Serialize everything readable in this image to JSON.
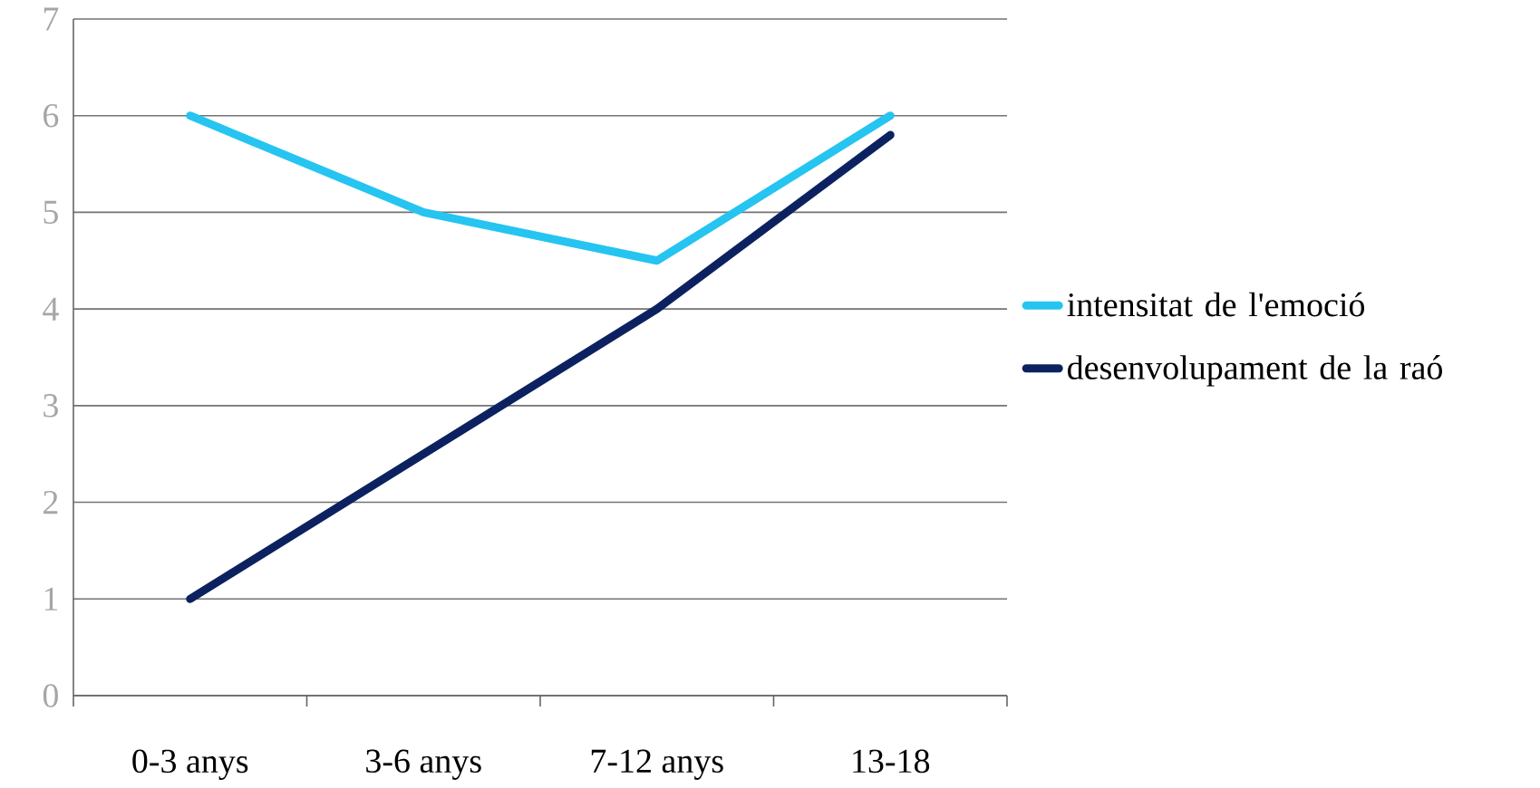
{
  "chart_data": {
    "type": "line",
    "categories": [
      "0-3 anys",
      "3-6 anys",
      "7-12 anys",
      "13-18"
    ],
    "series": [
      {
        "name": "intensitat de l'emoció",
        "color": "#26c4f0",
        "values": [
          6,
          5,
          4.5,
          6
        ]
      },
      {
        "name": "desenvolupament de la raó",
        "color": "#0c2260",
        "values": [
          1,
          2.5,
          4,
          5.8
        ]
      }
    ],
    "ylim": [
      0,
      7
    ],
    "yticks": [
      0,
      1,
      2,
      3,
      4,
      5,
      6,
      7
    ],
    "grid": "y",
    "legend": "right",
    "marker": "none",
    "line_style": "solid"
  }
}
